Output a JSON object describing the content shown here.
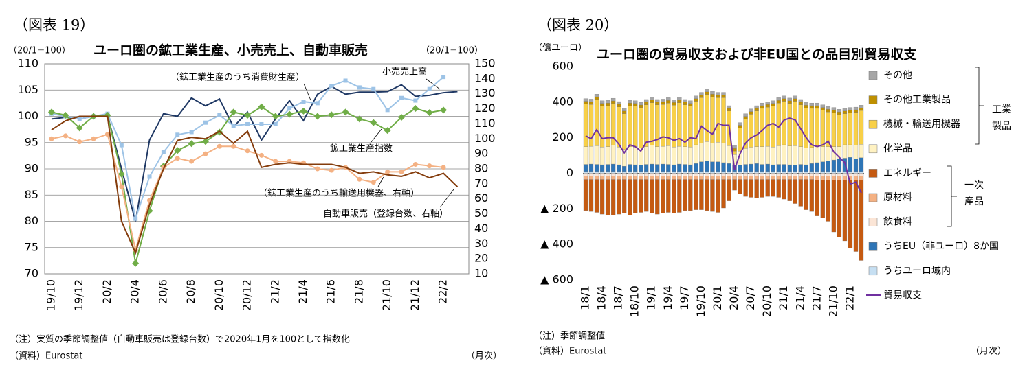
{
  "chart_data": [
    {
      "type": "line",
      "figure_label": "（図表 19）",
      "title": "ユーロ圏の鉱工業生産、小売売上、自動車販売",
      "ylabel": "（20/1=100）",
      "y2label": "（20/1=100）",
      "note": "（注）実質の季節調整値（自動車販売は登録台数）で2020年1月を100として指数化",
      "source": "（資料）Eurostat",
      "freq": "（月次）",
      "categories": [
        "19/10",
        null,
        "19/12",
        null,
        "20/2",
        null,
        "20/4",
        null,
        "20/6",
        null,
        "20/8",
        null,
        "20/10",
        null,
        "20/12",
        null,
        "21/2",
        null,
        "21/4",
        null,
        "21/6",
        null,
        "21/8",
        null,
        "21/10",
        null,
        "21/12",
        null,
        "22/2",
        null
      ],
      "ylim": [
        70,
        110
      ],
      "yticks": [
        70,
        75,
        80,
        85,
        90,
        95,
        100,
        105,
        110
      ],
      "y2lim": [
        10,
        150
      ],
      "y2ticks": [
        10,
        20,
        30,
        40,
        50,
        60,
        70,
        80,
        90,
        100,
        110,
        120,
        130,
        140,
        150
      ],
      "grid": true,
      "annotations": [
        "（鉱工業生産のうち消費財生産）",
        "小売売上高",
        "鉱工業生産指数",
        "（鉱工業生産のうち輸送用機器、右軸）",
        "自動車販売（登録台数、右軸）"
      ],
      "series": [
        {
          "name": "小売売上高",
          "color": "#1f3864",
          "marker": "none",
          "values": [
            99.5,
            99.8,
            99.5,
            100,
            100.2,
            90,
            80,
            95.5,
            100.5,
            100,
            103.5,
            102,
            103.3,
            98,
            100.8,
            95.5,
            99.5,
            103,
            99.2,
            104.2,
            105.7,
            104.2,
            104.6,
            104.6,
            104.7,
            106,
            103.8,
            104,
            104.5,
            104.7
          ]
        },
        {
          "name": "（鉱工業生産のうち消費財生産）",
          "color": "#9dc3e6",
          "marker": "square",
          "values": [
            100.5,
            100,
            99.5,
            100,
            100.5,
            94.5,
            80.5,
            88.5,
            93.2,
            96.5,
            97,
            98.8,
            100.2,
            98.2,
            98.5,
            98.5,
            98.5,
            101.5,
            102.8,
            102.5,
            105.8,
            106.8,
            105.5,
            105.2,
            101.2,
            103.5,
            103,
            105.2,
            107.5,
            null
          ]
        },
        {
          "name": "鉱工業生産指数",
          "color": "#70ad47",
          "marker": "diamond",
          "values": [
            100.8,
            100.2,
            97.8,
            100,
            100.2,
            89,
            72,
            82,
            90.5,
            93.5,
            94.8,
            95.2,
            97,
            100.8,
            100.2,
            101.8,
            100,
            100.4,
            101,
            100,
            100.3,
            100.8,
            99.5,
            98.8,
            97.3,
            99.8,
            101.5,
            100.7,
            101.2,
            null
          ]
        },
        {
          "name": "（鉱工業生産のうち輸送用機器、右軸）",
          "color": "#f4b183",
          "marker": "circle",
          "axis": "y2",
          "values": [
            100,
            102,
            98,
            100,
            103,
            68,
            26,
            59,
            81,
            87,
            85,
            90,
            95,
            95,
            92,
            89,
            85,
            85,
            84,
            80,
            79,
            81,
            73,
            71,
            78,
            78,
            83,
            82,
            81,
            null
          ]
        },
        {
          "name": "自動車販売（登録台数、右軸）",
          "color": "#843c0c",
          "marker": "none",
          "axis": "y2",
          "values": [
            106,
            112,
            115,
            115,
            115,
            45,
            24,
            56,
            80,
            99,
            101,
            100,
            105,
            97,
            105,
            81,
            83,
            84,
            83,
            83,
            83,
            81,
            77,
            78,
            76,
            75,
            78,
            74,
            77,
            68
          ]
        }
      ]
    },
    {
      "type": "bar",
      "stacked": true,
      "figure_label": "（図表 20）",
      "title": "ユーロ圏の貿易収支および非EU国との品目別貿易収支",
      "ylabel": "（億ユーロ）",
      "note": "（注）季節調整値",
      "source": "（資料）Eurostat",
      "freq": "（月次）",
      "group_labels": [
        [
          "工業",
          "製品"
        ],
        [
          "一次",
          "産品"
        ]
      ],
      "categories": [
        "18/1",
        null,
        null,
        "18/4",
        null,
        null,
        "18/7",
        null,
        null,
        "18/10",
        null,
        null,
        "19/1",
        null,
        null,
        "19/4",
        null,
        null,
        "19/7",
        null,
        null,
        "19/10",
        null,
        null,
        "20/1",
        null,
        null,
        "20/4",
        null,
        null,
        "20/7",
        null,
        null,
        "20/10",
        null,
        null,
        "21/1",
        null,
        null,
        "21/4",
        null,
        null,
        "21/7",
        null,
        null,
        "21/10",
        null,
        null,
        "22/1",
        null,
        null
      ],
      "ylim": [
        -600,
        600
      ],
      "yticks": [
        600,
        400,
        200,
        0,
        {
          "value": -200,
          "label": "▲ 200"
        },
        {
          "value": -400,
          "label": "▲ 400"
        },
        {
          "value": -600,
          "label": "▲ 600"
        }
      ],
      "series": [
        {
          "name": "その他",
          "color": "#a6a6a6",
          "values": [
            15,
            15,
            15,
            15,
            15,
            15,
            15,
            15,
            15,
            15,
            15,
            15,
            15,
            15,
            15,
            15,
            15,
            15,
            15,
            15,
            15,
            15,
            15,
            15,
            15,
            15,
            15,
            15,
            15,
            15,
            15,
            15,
            15,
            15,
            15,
            15,
            15,
            15,
            15,
            15,
            15,
            15,
            15,
            15,
            15,
            15,
            15,
            15,
            15,
            15,
            15
          ]
        },
        {
          "name": "その他工業製品",
          "color": "#bf9000",
          "values": [
            15,
            15,
            15,
            15,
            15,
            15,
            15,
            15,
            15,
            15,
            15,
            15,
            15,
            15,
            15,
            15,
            15,
            15,
            15,
            15,
            15,
            15,
            15,
            15,
            15,
            15,
            15,
            15,
            15,
            15,
            15,
            15,
            15,
            15,
            15,
            15,
            15,
            15,
            15,
            15,
            15,
            15,
            15,
            15,
            15,
            15,
            15,
            15,
            15,
            15,
            15
          ]
        },
        {
          "name": "機械・輸送用機器",
          "color": "#f8d048",
          "values": [
            240,
            235,
            260,
            230,
            230,
            235,
            225,
            200,
            230,
            230,
            225,
            235,
            240,
            235,
            235,
            240,
            235,
            245,
            235,
            230,
            245,
            255,
            265,
            260,
            250,
            255,
            195,
            20,
            130,
            165,
            185,
            200,
            215,
            220,
            230,
            240,
            245,
            240,
            250,
            235,
            225,
            220,
            215,
            205,
            195,
            190,
            180,
            175,
            180,
            185,
            190
          ]
        },
        {
          "name": "化学品",
          "color": "#fff2c2",
          "values": [
            100,
            100,
            105,
            100,
            100,
            105,
            100,
            95,
            100,
            100,
            98,
            100,
            105,
            100,
            100,
            105,
            100,
            100,
            100,
            100,
            105,
            105,
            110,
            105,
            110,
            110,
            100,
            60,
            80,
            90,
            95,
            95,
            100,
            100,
            100,
            105,
            110,
            105,
            110,
            100,
            95,
            90,
            90,
            85,
            80,
            75,
            70,
            75,
            70,
            75,
            75
          ]
        },
        {
          "name": "エネルギー",
          "color": "#c55a11",
          "values": [
            -175,
            -180,
            -185,
            -195,
            -200,
            -200,
            -195,
            -190,
            -200,
            -190,
            -185,
            -180,
            -190,
            -195,
            -190,
            -185,
            -190,
            -185,
            -175,
            -175,
            -170,
            -170,
            -175,
            -180,
            -185,
            -160,
            -120,
            -60,
            -80,
            -95,
            -100,
            -105,
            -100,
            -95,
            -95,
            -100,
            -110,
            -120,
            -135,
            -150,
            -170,
            -180,
            -200,
            -210,
            -230,
            -290,
            -320,
            -340,
            -380,
            -400,
            -450
          ]
        },
        {
          "name": "原材料",
          "color": "#f4b183",
          "values": [
            -20,
            -20,
            -20,
            -20,
            -20,
            -20,
            -20,
            -20,
            -20,
            -20,
            -20,
            -20,
            -20,
            -20,
            -20,
            -20,
            -20,
            -20,
            -20,
            -20,
            -20,
            -20,
            -20,
            -20,
            -20,
            -20,
            -20,
            -20,
            -20,
            -20,
            -20,
            -20,
            -20,
            -20,
            -20,
            -20,
            -20,
            -20,
            -20,
            -20,
            -20,
            -20,
            -25,
            -25,
            -25,
            -25,
            -25,
            -25,
            -25,
            -25,
            -25
          ]
        },
        {
          "name": "飲食料",
          "color": "#fbe5d6",
          "values": [
            -15,
            -15,
            -15,
            -15,
            -15,
            -15,
            -15,
            -15,
            -15,
            -15,
            -15,
            -15,
            -15,
            -15,
            -15,
            -15,
            -15,
            -15,
            -15,
            -15,
            -15,
            -15,
            -15,
            -15,
            -15,
            -15,
            -15,
            -15,
            -15,
            -15,
            -15,
            -15,
            -15,
            -15,
            -15,
            -15,
            -15,
            -15,
            -15,
            -15,
            -15,
            -15,
            -15,
            -15,
            -15,
            -15,
            -15,
            -15,
            -15,
            -15,
            -15
          ]
        },
        {
          "name": "うちEU（非ユーロ）8か国",
          "color": "#2e75b6",
          "values": [
            40,
            42,
            40,
            38,
            40,
            42,
            38,
            30,
            40,
            38,
            36,
            40,
            42,
            40,
            42,
            40,
            38,
            42,
            40,
            38,
            45,
            55,
            58,
            55,
            55,
            50,
            45,
            35,
            35,
            40,
            42,
            45,
            40,
            42,
            38,
            40,
            40,
            38,
            35,
            40,
            38,
            45,
            50,
            55,
            60,
            65,
            70,
            75,
            80,
            72,
            78
          ]
        },
        {
          "name": "うちユーロ域内",
          "color": "#c6dff2",
          "values": [
            10,
            10,
            10,
            10,
            10,
            10,
            10,
            10,
            10,
            10,
            10,
            10,
            10,
            10,
            10,
            10,
            10,
            10,
            10,
            10,
            10,
            10,
            10,
            10,
            10,
            10,
            10,
            10,
            10,
            10,
            10,
            10,
            10,
            10,
            10,
            10,
            10,
            10,
            10,
            10,
            10,
            10,
            10,
            10,
            10,
            10,
            10,
            10,
            10,
            10,
            10
          ]
        },
        {
          "name": "貿易収支",
          "type": "line",
          "color": "#7030a0",
          "values": [
            210,
            195,
            245,
            195,
            200,
            200,
            165,
            115,
            160,
            150,
            125,
            175,
            180,
            190,
            205,
            200,
            185,
            195,
            175,
            200,
            195,
            265,
            240,
            220,
            280,
            270,
            270,
            20,
            110,
            170,
            200,
            215,
            240,
            270,
            280,
            260,
            300,
            310,
            300,
            250,
            200,
            160,
            150,
            160,
            180,
            120,
            90,
            60,
            -60,
            -50,
            -110
          ]
        }
      ]
    }
  ]
}
